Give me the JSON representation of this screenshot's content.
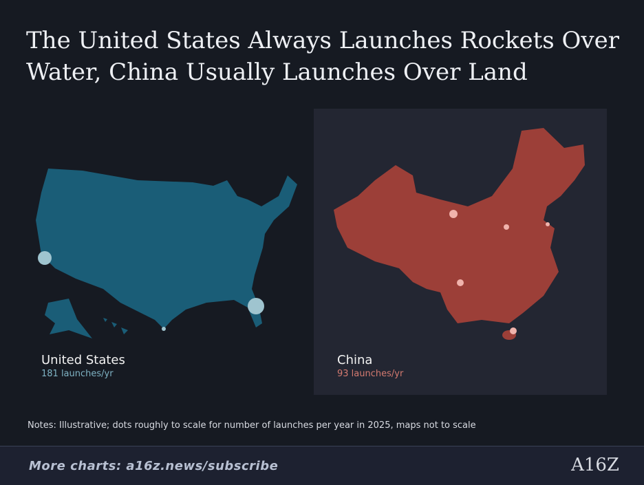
{
  "title": "The United States Always Launches Rockets Over Water, China Usually Launches Over Land",
  "panels": [
    {
      "name": "United States",
      "launches": "181 launches/yr"
    },
    {
      "name": "China",
      "launches": "93 launches/yr"
    }
  ],
  "notes": "Notes: Illustrative; dots roughly to scale for number of launches per year in 2025, maps not to scale",
  "footer": {
    "link": "More charts: a16z.news/subscribe",
    "logo": "A16Z"
  }
}
